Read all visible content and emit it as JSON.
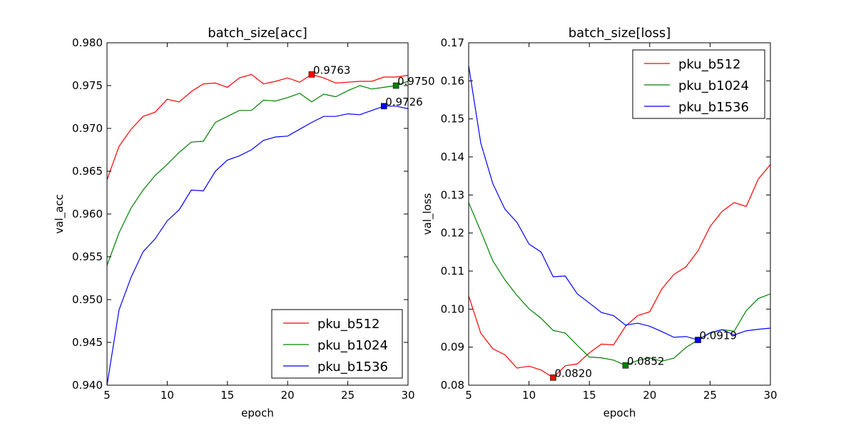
{
  "chart_data": [
    {
      "type": "line",
      "title": "batch_size[acc]",
      "xlabel": "epoch",
      "ylabel": "val_acc",
      "xlim": [
        5,
        30
      ],
      "ylim": [
        0.94,
        0.98
      ],
      "xticks": [
        "5",
        "10",
        "15",
        "20",
        "25",
        "30"
      ],
      "yticks": [
        "0.940",
        "0.945",
        "0.950",
        "0.955",
        "0.960",
        "0.965",
        "0.970",
        "0.975",
        "0.980"
      ],
      "legend_position": "lower-right",
      "grid": false,
      "x": [
        5,
        6,
        7,
        8,
        9,
        10,
        11,
        12,
        13,
        14,
        15,
        16,
        17,
        18,
        19,
        20,
        21,
        22,
        23,
        24,
        25,
        26,
        27,
        28,
        29,
        30
      ],
      "series": [
        {
          "name": "pku_b512",
          "color": "#ff0000",
          "values": [
            0.964,
            0.9679,
            0.9699,
            0.9714,
            0.9719,
            0.9734,
            0.9731,
            0.9743,
            0.9752,
            0.9753,
            0.9748,
            0.9759,
            0.9763,
            0.9752,
            0.9755,
            0.9759,
            0.9754,
            0.9763,
            0.9759,
            0.9753,
            0.9754,
            0.9755,
            0.9755,
            0.976,
            0.976,
            0.9762
          ]
        },
        {
          "name": "pku_b1024",
          "color": "#008000",
          "values": [
            0.954,
            0.9578,
            0.9607,
            0.9628,
            0.9645,
            0.9658,
            0.9672,
            0.9684,
            0.9685,
            0.9707,
            0.9714,
            0.9721,
            0.9721,
            0.9733,
            0.9732,
            0.9736,
            0.9741,
            0.9731,
            0.974,
            0.9737,
            0.9744,
            0.975,
            0.9746,
            0.9748,
            0.975,
            0.9755
          ]
        },
        {
          "name": "pku_b1536",
          "color": "#0000ff",
          "values": [
            0.94,
            0.9488,
            0.9526,
            0.9556,
            0.9571,
            0.9592,
            0.9605,
            0.9628,
            0.9627,
            0.965,
            0.9663,
            0.9668,
            0.9675,
            0.9686,
            0.969,
            0.9691,
            0.9699,
            0.9707,
            0.9714,
            0.9714,
            0.9717,
            0.9716,
            0.9721,
            0.9726,
            0.9726,
            0.9723
          ]
        }
      ],
      "annotations": [
        {
          "x": 22,
          "y": 0.9763,
          "text": "0.9763",
          "color": "#ff0000"
        },
        {
          "x": 29,
          "y": 0.975,
          "text": "0.9750",
          "color": "#008000"
        },
        {
          "x": 28,
          "y": 0.9726,
          "text": "0.9726",
          "color": "#0000ff"
        }
      ]
    },
    {
      "type": "line",
      "title": "batch_size[loss]",
      "xlabel": "epoch",
      "ylabel": "val_loss",
      "xlim": [
        5,
        30
      ],
      "ylim": [
        0.08,
        0.17
      ],
      "xticks": [
        "5",
        "10",
        "15",
        "20",
        "25",
        "30"
      ],
      "yticks": [
        "0.08",
        "0.09",
        "0.10",
        "0.11",
        "0.12",
        "0.13",
        "0.14",
        "0.15",
        "0.16",
        "0.17"
      ],
      "legend_position": "upper-right",
      "grid": false,
      "x": [
        5,
        6,
        7,
        8,
        9,
        10,
        11,
        12,
        13,
        14,
        15,
        16,
        17,
        18,
        19,
        20,
        21,
        22,
        23,
        24,
        25,
        26,
        27,
        28,
        29,
        30
      ],
      "series": [
        {
          "name": "pku_b512",
          "color": "#ff0000",
          "values": [
            0.1035,
            0.0937,
            0.0896,
            0.088,
            0.0845,
            0.085,
            0.084,
            0.082,
            0.0851,
            0.0856,
            0.0885,
            0.0908,
            0.0906,
            0.0955,
            0.0983,
            0.0993,
            0.1053,
            0.1091,
            0.1111,
            0.1153,
            0.1217,
            0.1257,
            0.128,
            0.127,
            0.1342,
            0.138
          ]
        },
        {
          "name": "pku_b1024",
          "color": "#008000",
          "values": [
            0.128,
            0.1205,
            0.1127,
            0.1077,
            0.1036,
            0.1001,
            0.0976,
            0.0944,
            0.0937,
            0.0905,
            0.0874,
            0.0872,
            0.0866,
            0.0852,
            0.0865,
            0.0872,
            0.0863,
            0.0871,
            0.0899,
            0.0919,
            0.0937,
            0.0946,
            0.0942,
            0.0996,
            0.1028,
            0.104
          ]
        },
        {
          "name": "pku_b1536",
          "color": "#0000ff",
          "values": [
            0.164,
            0.1437,
            0.133,
            0.1263,
            0.1228,
            0.1171,
            0.115,
            0.1085,
            0.1087,
            0.104,
            0.1016,
            0.0991,
            0.0983,
            0.0958,
            0.0963,
            0.0955,
            0.0941,
            0.0926,
            0.0928,
            0.0919,
            0.0938,
            0.0946,
            0.0932,
            0.0943,
            0.0947,
            0.095
          ]
        }
      ],
      "annotations": [
        {
          "x": 12,
          "y": 0.082,
          "text": "0.0820",
          "color": "#ff0000"
        },
        {
          "x": 18,
          "y": 0.0852,
          "text": "0.0852",
          "color": "#008000"
        },
        {
          "x": 24,
          "y": 0.0919,
          "text": "0.0919",
          "color": "#0000ff"
        }
      ]
    }
  ]
}
